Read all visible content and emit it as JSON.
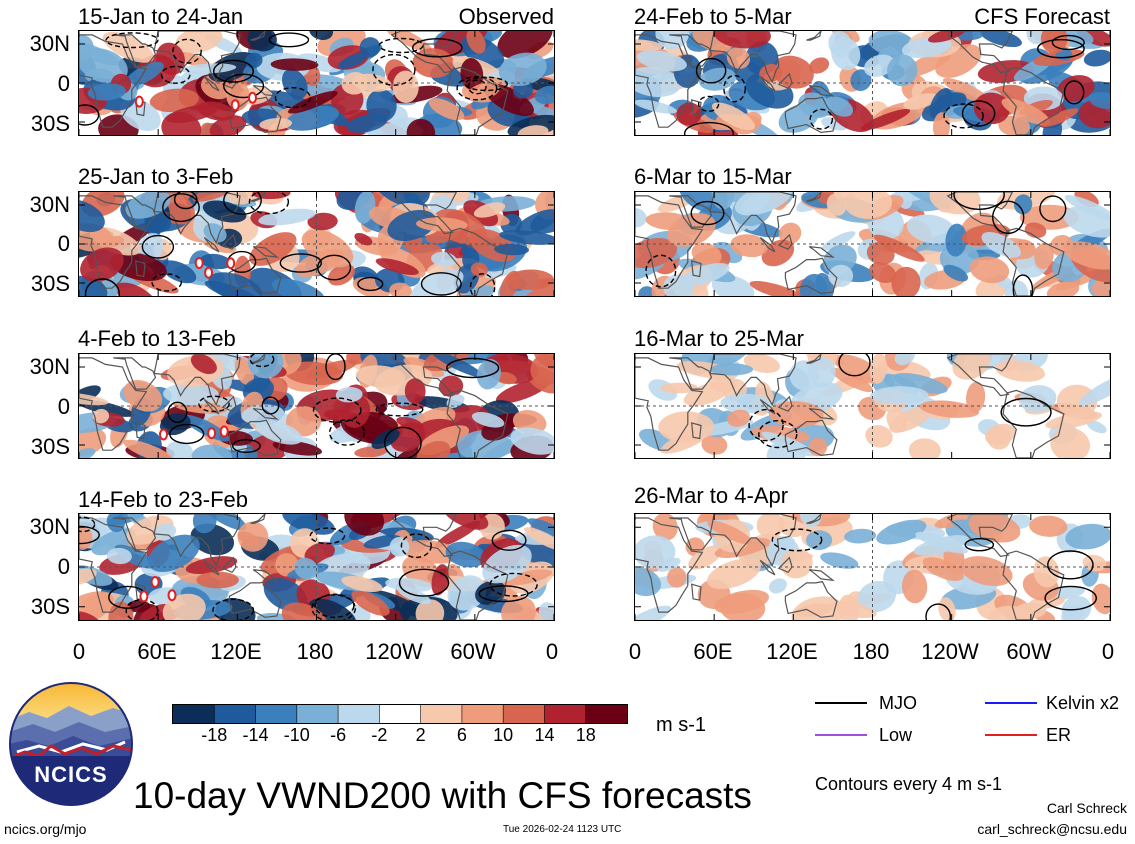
{
  "chart_data": {
    "type": "heatmap",
    "title": "10-day VWND200 with CFS forecasts",
    "variable": "VWND200",
    "columns": [
      {
        "name": "Observed",
        "periods": [
          "15-Jan to 24-Jan",
          "25-Jan to 3-Feb",
          "4-Feb to 13-Feb",
          "14-Feb to 23-Feb"
        ]
      },
      {
        "name": "CFS Forecast",
        "periods": [
          "24-Feb to 5-Mar",
          "6-Mar to 15-Mar",
          "16-Mar to 25-Mar",
          "26-Mar to 4-Apr"
        ]
      }
    ],
    "x_ticks": [
      "0",
      "60E",
      "120E",
      "180",
      "120W",
      "60W",
      "0"
    ],
    "y_ticks": [
      "30N",
      "0",
      "30S"
    ],
    "xlim": [
      0,
      360
    ],
    "ylim": [
      -40,
      40
    ],
    "colorbar": {
      "ticks": [
        "-18",
        "-14",
        "-10",
        "-6",
        "-2",
        "2",
        "6",
        "10",
        "14",
        "18"
      ],
      "units": "m s-1",
      "colors": [
        "#0b2d57",
        "#1f5b9c",
        "#3b7fbd",
        "#7aafd6",
        "#bcd8ec",
        "#ffffff",
        "#f6c8ac",
        "#ee9c7c",
        "#d8654f",
        "#b02230",
        "#6b0014"
      ]
    },
    "contour_interval_text": "Contours every 4 m s-1",
    "legend": [
      {
        "label": "MJO",
        "color": "#000000"
      },
      {
        "label": "Kelvin x2",
        "color": "#1a1aff"
      },
      {
        "label": "Low",
        "color": "#a050d8"
      },
      {
        "label": "ER",
        "color": "#e02020"
      }
    ]
  },
  "footer": {
    "site": "ncics.org/mjo",
    "timestamp": "Tue 2026-02-24 1123 UTC",
    "author": "Carl Schreck",
    "email": "carl_schreck@ncsu.edu"
  },
  "logo": {
    "text": "NCICS"
  }
}
